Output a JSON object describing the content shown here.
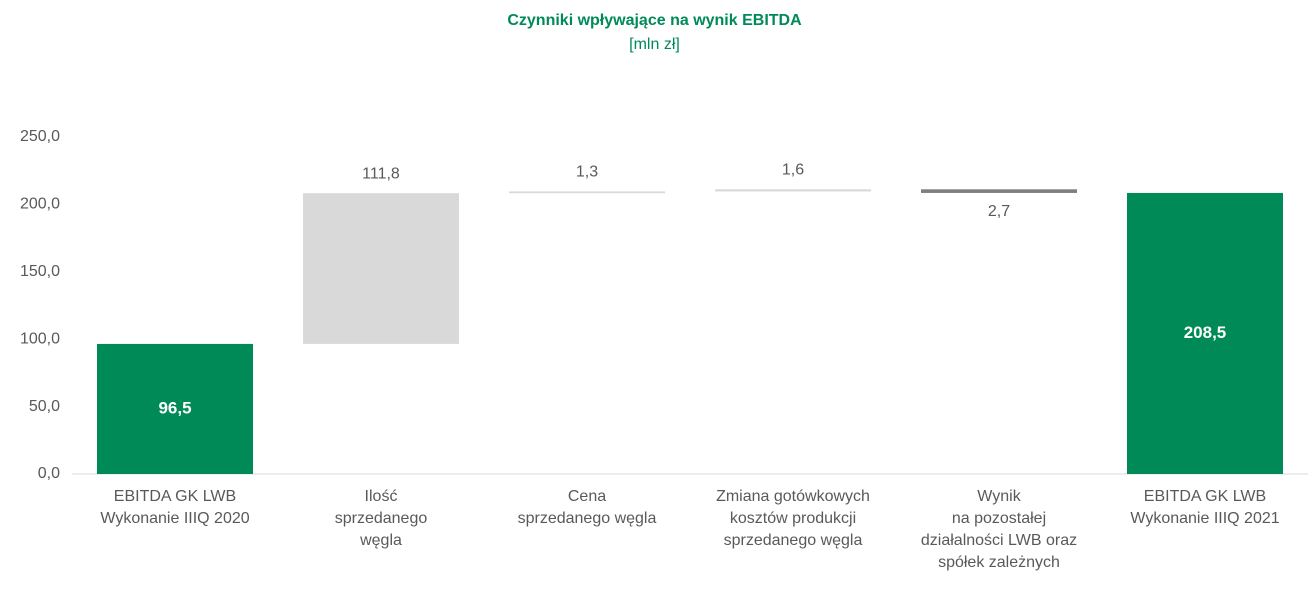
{
  "chart_data": {
    "type": "waterfall",
    "title": "Czynniki wpływające na wynik EBITDA",
    "subtitle": "[mln zł]",
    "categories": [
      "EBITDA GK LWB\nWykonanie IIIQ 2020",
      "Ilość\nsprzedanego\nwęgla",
      "Cena\nsprzedanego węgla",
      "Zmiana gotówkowych\nkosztów produkcji\nsprzedanego węgla",
      "Wynik\nna pozostałej\ndziałalności LWB oraz\nspółek zależnych",
      "EBITDA GK LWB\nWykonanie IIIQ 2021"
    ],
    "values": [
      96.5,
      111.8,
      1.3,
      1.6,
      -2.7,
      208.5
    ],
    "value_labels": [
      "96,5",
      "111,8",
      "1,3",
      "1,6",
      "2,7",
      "208,5"
    ],
    "measure": [
      "total",
      "relative",
      "relative",
      "relative",
      "relative",
      "total"
    ],
    "colors": {
      "total": "#008a58",
      "increase": "#d9d9d9",
      "decrease": "#7f7f7f"
    },
    "ylim": [
      0,
      250
    ],
    "yticks": [
      {
        "value": 0,
        "label": "0,0"
      },
      {
        "value": 50,
        "label": "50,0"
      },
      {
        "value": 100,
        "label": "100,0"
      },
      {
        "value": 150,
        "label": "150,0"
      },
      {
        "value": 200,
        "label": "200,0"
      },
      {
        "value": 250,
        "label": "250,0"
      }
    ]
  }
}
